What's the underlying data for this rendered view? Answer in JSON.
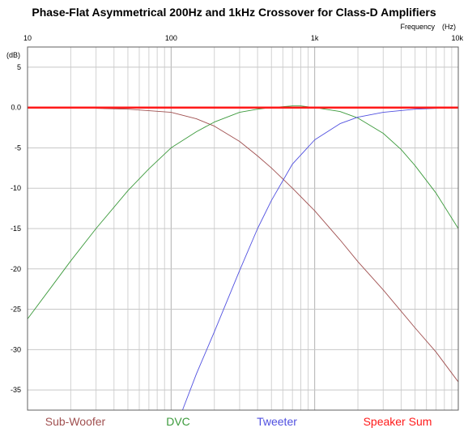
{
  "chart_data": {
    "type": "line",
    "title": "Phase-Flat Asymmetrical 200Hz and 1kHz Crossover for Class-D Amplifiers",
    "xlabel": "Frequency",
    "xunit": "(Hz)",
    "ylabel": "(dB)",
    "xscale": "log",
    "xlim": [
      10,
      10000
    ],
    "ylim": [
      -37.5,
      7.5
    ],
    "grid": true,
    "legend_position": "bottom",
    "x_ticks": [
      {
        "value": 10,
        "label": "10"
      },
      {
        "value": 100,
        "label": "100"
      },
      {
        "value": 1000,
        "label": "1k"
      },
      {
        "value": 10000,
        "label": "10k"
      }
    ],
    "y_ticks": [
      {
        "value": 5,
        "label": "5"
      },
      {
        "value": 0,
        "label": "0.0"
      },
      {
        "value": -5,
        "label": "-5"
      },
      {
        "value": -10,
        "label": "-10"
      },
      {
        "value": -15,
        "label": "-15"
      },
      {
        "value": -20,
        "label": "-20"
      },
      {
        "value": -25,
        "label": "-25"
      },
      {
        "value": -30,
        "label": "-30"
      },
      {
        "value": -35,
        "label": "-35"
      }
    ],
    "series": [
      {
        "name": "Sub-Woofer",
        "color": "#a05050",
        "x": [
          30,
          50,
          100,
          150,
          200,
          300,
          400,
          500,
          700,
          1000,
          1500,
          2000,
          3000,
          5000,
          7000,
          10000
        ],
        "y": [
          -0.1,
          -0.2,
          -0.6,
          -1.4,
          -2.3,
          -4.2,
          -6.0,
          -7.5,
          -10.0,
          -12.8,
          -16.4,
          -19.1,
          -22.6,
          -27.3,
          -30.3,
          -34.0
        ]
      },
      {
        "name": "DVC",
        "color": "#3c9a3c",
        "x": [
          10,
          15,
          20,
          30,
          50,
          70,
          100,
          150,
          200,
          300,
          400,
          500,
          700,
          800,
          1000,
          1500,
          2000,
          3000,
          4000,
          5000,
          7000,
          10000
        ],
        "y": [
          -26.2,
          -22.0,
          -19.0,
          -15.0,
          -10.3,
          -7.6,
          -5.0,
          -3.0,
          -1.8,
          -0.6,
          -0.2,
          0.0,
          0.2,
          0.2,
          0.0,
          -0.5,
          -1.3,
          -3.2,
          -5.2,
          -7.2,
          -10.6,
          -15.0
        ]
      },
      {
        "name": "Tweeter",
        "color": "#5050e0",
        "x": [
          120,
          150,
          200,
          300,
          400,
          500,
          700,
          1000,
          1500,
          2000,
          3000,
          5000,
          7000,
          10000
        ],
        "y": [
          -37.5,
          -33.0,
          -27.8,
          -20.2,
          -15.0,
          -11.5,
          -7.0,
          -4.0,
          -2.0,
          -1.2,
          -0.6,
          -0.2,
          -0.1,
          0.0
        ]
      },
      {
        "name": "Speaker Sum",
        "color": "#ff1a1a",
        "x": [
          10,
          10000
        ],
        "y": [
          0,
          0
        ]
      }
    ]
  }
}
